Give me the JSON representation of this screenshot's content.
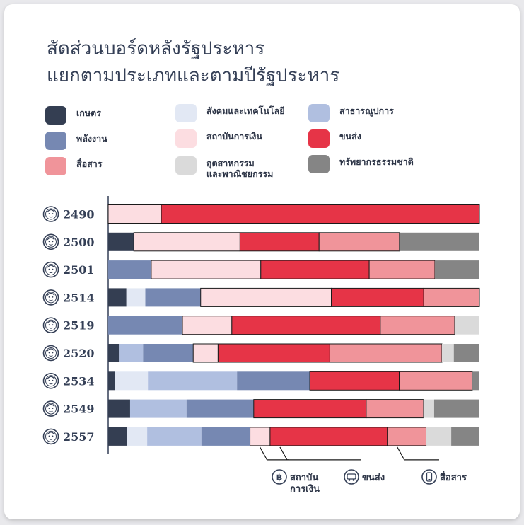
{
  "title": {
    "line1": "สัดส่วนบอร์ดหลังรัฐประหาร",
    "line2": "แยกตามประเภทและตามปีรัฐประหาร"
  },
  "colors": {
    "เกษตร": "#343e52",
    "พลังงาน": "#7688b2",
    "สื่อสาร": "#f0949a",
    "สังคมและเทคโนโลยี": "#e2e8f4",
    "สถาบันการเงิน": "#fcdde1",
    "อุตสาหกรรมและพาณิชยกรรม": "#dadada",
    "สาธารณูปการ": "#b0bfe0",
    "ขนส่ง": "#e63447",
    "ทรัพยากรธรรมชาติ": "#858585"
  },
  "legend": [
    {
      "label": "เกษตร",
      "key": "เกษตร"
    },
    {
      "label": "พลังงาน",
      "key": "พลังงาน"
    },
    {
      "label": "สื่อสาร",
      "key": "สื่อสาร"
    },
    {
      "label": "สังคมและเทคโนโลยี",
      "key": "สังคมและเทคโนโลยี"
    },
    {
      "label": "สถาบันการเงิน",
      "key": "สถาบันการเงิน"
    },
    {
      "label": "อุตสาหกรรม\nและพาณิชยกรรม",
      "key": "อุตสาหกรรมและพาณิชยกรรม"
    },
    {
      "label": "สาธารณูปการ",
      "key": "สาธารณูปการ"
    },
    {
      "label": "ขนส่ง",
      "key": "ขนส่ง"
    },
    {
      "label": "ทรัพยากรธรรมชาติ",
      "key": "ทรัพยากรธรรมชาติ"
    }
  ],
  "chart_data": {
    "type": "bar",
    "orientation": "horizontal",
    "stacked": true,
    "normalized": true,
    "xlim": [
      0,
      1
    ],
    "highlighted_categories": [
      "สถาบันการเงิน",
      "ขนส่ง",
      "สื่อสาร"
    ],
    "rows": [
      {
        "year": "2490",
        "segments": [
          {
            "category": "สถาบันการเงิน",
            "value": 0.143
          },
          {
            "category": "ขนส่ง",
            "value": 0.857
          }
        ]
      },
      {
        "year": "2500",
        "segments": [
          {
            "category": "เกษตร",
            "value": 0.069
          },
          {
            "category": "สถาบันการเงิน",
            "value": 0.286
          },
          {
            "category": "ขนส่ง",
            "value": 0.213
          },
          {
            "category": "สื่อสาร",
            "value": 0.216
          },
          {
            "category": "ทรัพยากรธรรมชาติ",
            "value": 0.216
          }
        ]
      },
      {
        "year": "2501",
        "segments": [
          {
            "category": "พลังงาน",
            "value": 0.116
          },
          {
            "category": "สถาบันการเงิน",
            "value": 0.295
          },
          {
            "category": "ขนส่ง",
            "value": 0.292
          },
          {
            "category": "สื่อสาร",
            "value": 0.177
          },
          {
            "category": "ทรัพยากรธรรมชาติ",
            "value": 0.12
          }
        ]
      },
      {
        "year": "2514",
        "segments": [
          {
            "category": "เกษตร",
            "value": 0.049
          },
          {
            "category": "สังคมและเทคโนโลยี",
            "value": 0.051
          },
          {
            "category": "พลังงาน",
            "value": 0.149
          },
          {
            "category": "สถาบันการเงิน",
            "value": 0.352
          },
          {
            "category": "ขนส่ง",
            "value": 0.249
          },
          {
            "category": "สื่อสาร",
            "value": 0.15
          }
        ]
      },
      {
        "year": "2519",
        "segments": [
          {
            "category": "พลังงาน",
            "value": 0.2
          },
          {
            "category": "สถาบันการเงิน",
            "value": 0.133
          },
          {
            "category": "ขนส่ง",
            "value": 0.4
          },
          {
            "category": "สื่อสาร",
            "value": 0.2
          },
          {
            "category": "อุตสาหกรรมและพาณิชยกรรม",
            "value": 0.067
          }
        ]
      },
      {
        "year": "2520",
        "segments": [
          {
            "category": "เกษตร",
            "value": 0.029
          },
          {
            "category": "สาธารณูปการ",
            "value": 0.065
          },
          {
            "category": "พลังงาน",
            "value": 0.135
          },
          {
            "category": "สถาบันการเงิน",
            "value": 0.067
          },
          {
            "category": "ขนส่ง",
            "value": 0.301
          },
          {
            "category": "สื่อสาร",
            "value": 0.302
          },
          {
            "category": "อุตสาหกรรมและพาณิชยกรรม",
            "value": 0.032
          },
          {
            "category": "ทรัพยากรธรรมชาติ",
            "value": 0.069
          }
        ]
      },
      {
        "year": "2534",
        "segments": [
          {
            "category": "เกษตร",
            "value": 0.019
          },
          {
            "category": "สังคมและเทคโนโลยี",
            "value": 0.088
          },
          {
            "category": "สาธารณูปการ",
            "value": 0.24
          },
          {
            "category": "พลังงาน",
            "value": 0.196
          },
          {
            "category": "ขนส่ง",
            "value": 0.241
          },
          {
            "category": "สื่อสาร",
            "value": 0.197
          },
          {
            "category": "ทรัพยากรธรรมชาติ",
            "value": 0.019
          }
        ]
      },
      {
        "year": "2549",
        "segments": [
          {
            "category": "เกษตร",
            "value": 0.059
          },
          {
            "category": "สาธารณูปการ",
            "value": 0.152
          },
          {
            "category": "พลังงาน",
            "value": 0.181
          },
          {
            "category": "ขนส่ง",
            "value": 0.303
          },
          {
            "category": "สื่อสาร",
            "value": 0.154
          },
          {
            "category": "อุตสาหกรรมและพาณิชยกรรม",
            "value": 0.029
          },
          {
            "category": "ทรัพยากรธรรมชาติ",
            "value": 0.122
          }
        ]
      },
      {
        "year": "2557",
        "segments": [
          {
            "category": "เกษตร",
            "value": 0.051
          },
          {
            "category": "สังคมและเทคโนโลยี",
            "value": 0.054
          },
          {
            "category": "สาธารณูปการ",
            "value": 0.146
          },
          {
            "category": "พลังงาน",
            "value": 0.131
          },
          {
            "category": "สถาบันการเงิน",
            "value": 0.054
          },
          {
            "category": "ขนส่ง",
            "value": 0.316
          },
          {
            "category": "สื่อสาร",
            "value": 0.105
          },
          {
            "category": "อุตสาหกรรมและพาณิชยกรรม",
            "value": 0.067
          },
          {
            "category": "ทรัพยากรธรรมชาติ",
            "value": 0.076
          }
        ]
      }
    ],
    "annotations": [
      {
        "category": "สถาบันการเงิน",
        "label_line1": "สถาบัน",
        "label_line2": "การเงิน",
        "icon": "baht-coin-icon",
        "icon_glyph": "฿"
      },
      {
        "category": "ขนส่ง",
        "label_line1": "ขนส่ง",
        "label_line2": "",
        "icon": "bus-icon",
        "icon_glyph": "🚌"
      },
      {
        "category": "สื่อสาร",
        "label_line1": "สื่อสาร",
        "label_line2": "",
        "icon": "smartphone-icon",
        "icon_glyph": "📱"
      }
    ]
  }
}
